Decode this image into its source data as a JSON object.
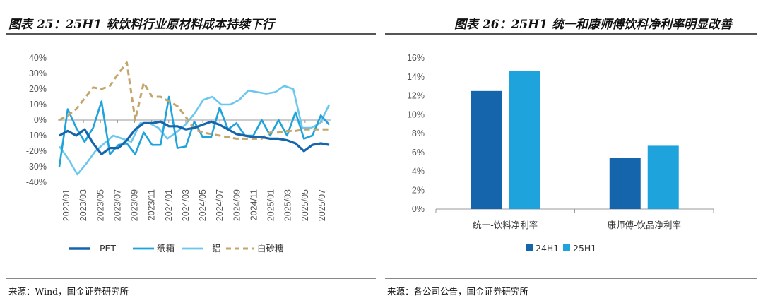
{
  "left_panel": {
    "title": "图表 25：25H1 软饮料行业原材料成本持续下行",
    "source": "来源：Wind，国金证券研究所"
  },
  "right_panel": {
    "title": "图表 26：25H1 统一和康师傅饮料净利率明显改善",
    "source": "来源：各公司公告，国金证券研究所"
  },
  "colors": {
    "pet": "#1565ad",
    "carton": "#1ea3dc",
    "aluminum": "#6cc7ef",
    "sugar": "#c4a56c",
    "h24": "#1565ad",
    "h25": "#1ea3dc"
  },
  "chart_data": [
    {
      "type": "line",
      "title": "25H1 软饮料行业原材料成本持续下行",
      "ylim": [
        -40,
        40
      ],
      "yticks": [
        "40%",
        "30%",
        "20%",
        "10%",
        "0%",
        "-10%",
        "-20%",
        "-30%",
        "-40%"
      ],
      "x_tick_labels": [
        "2023/01",
        "2023/03",
        "2023/05",
        "2023/07",
        "2023/09",
        "2023/11",
        "2024/01",
        "2024/03",
        "2024/05",
        "2024/07",
        "2024/09",
        "2024/11",
        "2025/01",
        "2025/03",
        "2025/05",
        "2025/07"
      ],
      "series": [
        {
          "name": "PET",
          "style": "solid-thick",
          "values": [
            -10,
            -7,
            -10,
            -6,
            -15,
            -22,
            -18,
            -18,
            -13,
            -6,
            -2,
            -2,
            -1,
            -4,
            -4,
            -6,
            -5,
            -3,
            -1,
            -3,
            -6,
            -9,
            -10,
            -11,
            -11,
            -12,
            -12,
            -13,
            -15,
            -20,
            -16,
            -15,
            -16
          ]
        },
        {
          "name": "纸箱",
          "style": "solid",
          "values": [
            -30,
            7,
            -5,
            -14,
            -5,
            12,
            -22,
            -16,
            -15,
            -22,
            -8,
            -16,
            -16,
            15,
            -18,
            -17,
            -1,
            -11,
            -11,
            8,
            -6,
            -2,
            -10,
            -10,
            0,
            -10,
            0,
            -10,
            5,
            -12,
            -10,
            3,
            -3
          ]
        },
        {
          "name": "铝",
          "style": "solid",
          "values": [
            -17,
            -25,
            -35,
            -28,
            -20,
            -15,
            -10,
            -12,
            -14,
            -2,
            -2,
            -5,
            -12,
            -8,
            -3,
            4,
            13,
            15,
            10,
            10,
            13,
            19,
            18,
            17,
            18,
            22,
            20,
            -5,
            -5,
            -2,
            10
          ]
        },
        {
          "name": "白砂糖",
          "style": "dashed",
          "values": [
            0,
            3,
            7,
            14,
            21,
            20,
            22,
            30,
            37,
            0,
            24,
            15,
            15,
            12,
            9,
            2,
            -6,
            -8,
            -9,
            -10,
            -11,
            -12,
            -12,
            -12,
            -12,
            -8,
            -8,
            -7,
            -7,
            -6,
            -6,
            -6,
            -6
          ]
        }
      ],
      "legend": [
        "PET",
        "纸箱",
        "铝",
        "白砂糖"
      ]
    },
    {
      "type": "bar",
      "title": "25H1 统一和康师傅饮料净利率明显改善",
      "categories": [
        "统一-饮料净利率",
        "康师傅-饮品净利率"
      ],
      "series": [
        {
          "name": "24H1",
          "values": [
            12.5,
            5.4
          ]
        },
        {
          "name": "25H1",
          "values": [
            14.6,
            6.7
          ]
        }
      ],
      "ylim": [
        0,
        16
      ],
      "yticks": [
        "16%",
        "14%",
        "12%",
        "10%",
        "8%",
        "6%",
        "4%",
        "2%",
        "0%"
      ],
      "legend": [
        "24H1",
        "25H1"
      ]
    }
  ]
}
